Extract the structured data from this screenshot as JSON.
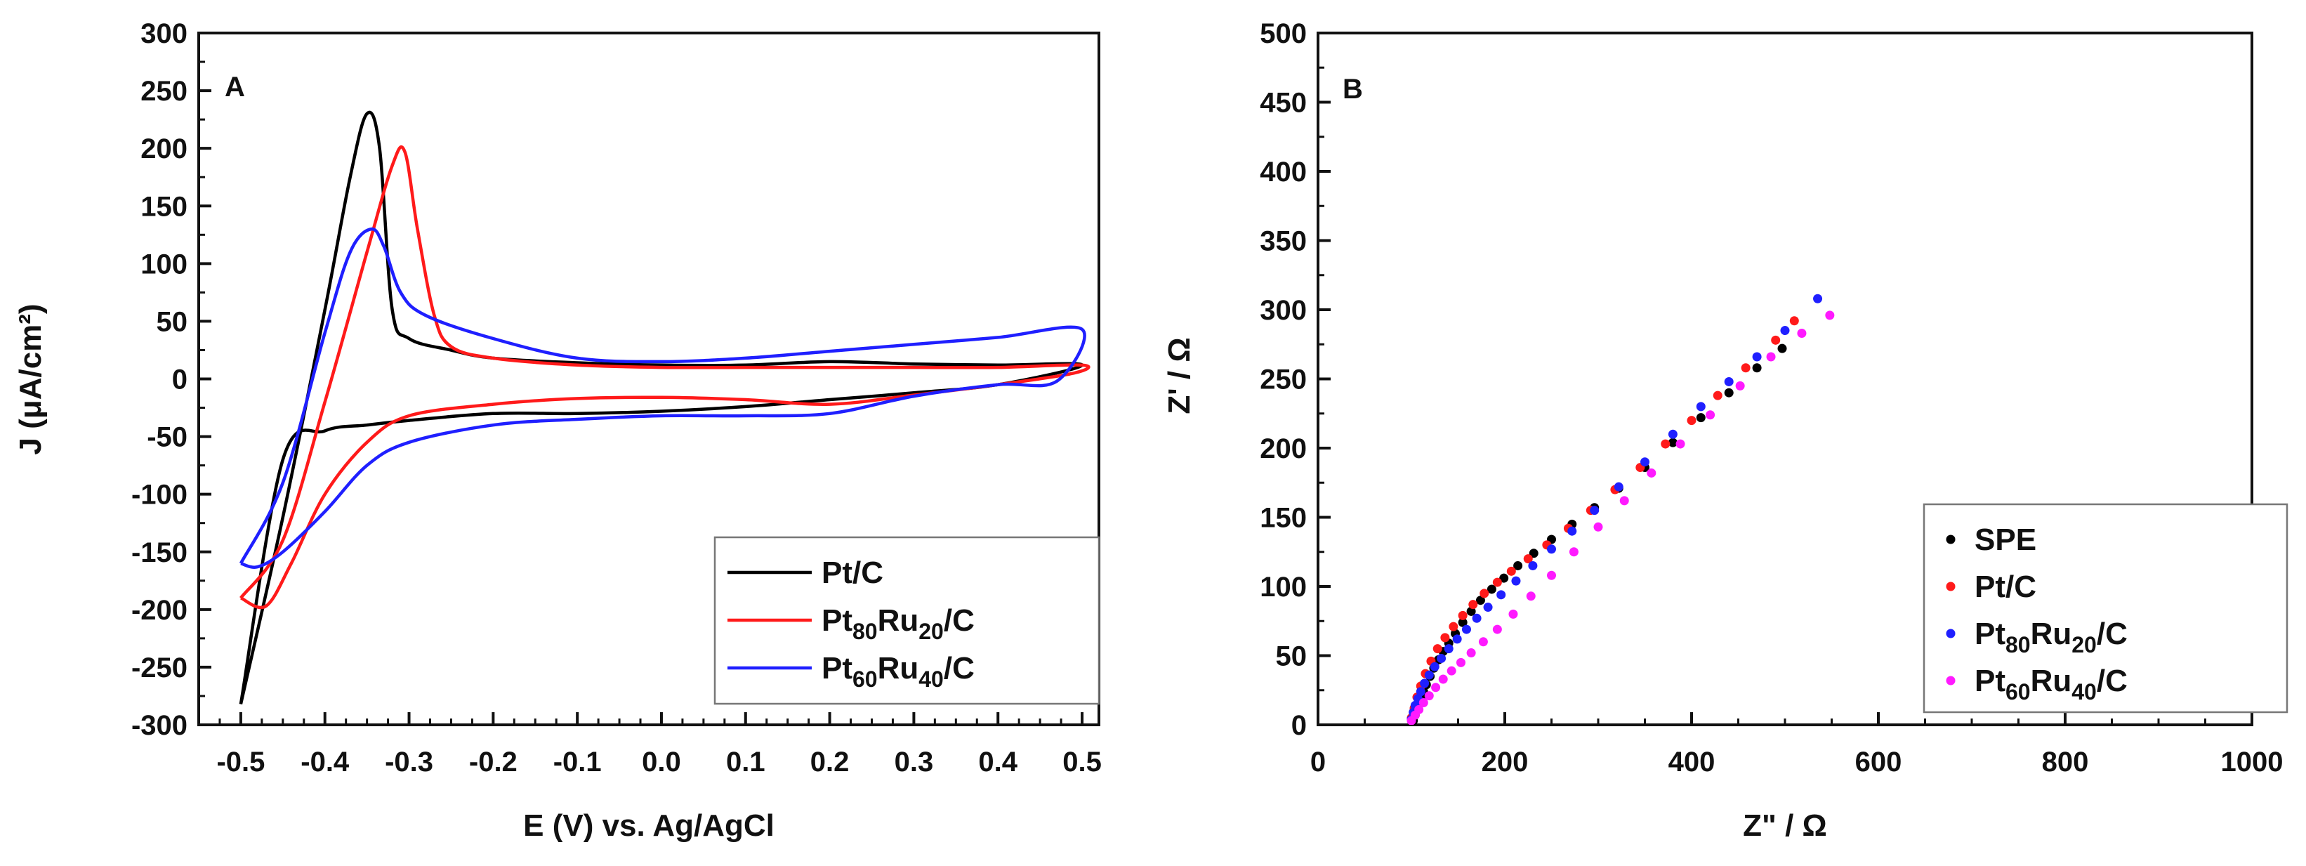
{
  "chart_data": [
    {
      "type": "line",
      "panel_label": "A",
      "xlabel": "E (V) vs. Ag/AgCl",
      "ylabel": "J (μA/cm²)",
      "xlim": [
        -0.55,
        0.52
      ],
      "ylim": [
        -300,
        300
      ],
      "xticks": [
        -0.5,
        -0.4,
        -0.3,
        -0.2,
        -0.1,
        0.0,
        0.1,
        0.2,
        0.3,
        0.4,
        0.5
      ],
      "xtick_labels": [
        "-0.5",
        "-0.4",
        "-0.3",
        "-0.2",
        "-0.1",
        "0.0",
        "0.1",
        "0.2",
        "0.3",
        "0.4",
        "0.5"
      ],
      "yticks": [
        -300,
        -250,
        -200,
        -150,
        -100,
        -50,
        0,
        50,
        100,
        150,
        200,
        250,
        300
      ],
      "ytick_labels": [
        "-300",
        "-250",
        "-200",
        "-150",
        "-100",
        "-50",
        "0",
        "50",
        "100",
        "150",
        "200",
        "250",
        "300"
      ],
      "legend_position": "bottom-right",
      "series": [
        {
          "name": "Pt/C",
          "legend": {
            "main": "Pt/C",
            "sub": []
          },
          "color": "#000000",
          "x": [
            -0.5,
            -0.45,
            -0.4,
            -0.37,
            -0.35,
            -0.335,
            -0.32,
            -0.3,
            -0.25,
            -0.2,
            -0.1,
            0.0,
            0.1,
            0.2,
            0.3,
            0.4,
            0.5,
            0.4,
            0.3,
            0.2,
            0.1,
            0.0,
            -0.1,
            -0.2,
            -0.3,
            -0.35,
            -0.4,
            -0.45,
            -0.5
          ],
          "y": [
            -282,
            -120,
            60,
            175,
            230,
            200,
            60,
            35,
            25,
            18,
            14,
            12,
            12,
            15,
            13,
            12,
            12,
            -5,
            -12,
            -18,
            -24,
            -28,
            -30,
            -30,
            -36,
            -40,
            -45,
            -70,
            -282
          ]
        },
        {
          "name": "Pt80Ru20/C",
          "legend": {
            "main": "Pt",
            "sub": [
              "80",
              "Ru",
              "20",
              "/C"
            ]
          },
          "color": "#ff1a1a",
          "x": [
            -0.5,
            -0.45,
            -0.4,
            -0.35,
            -0.32,
            -0.305,
            -0.29,
            -0.27,
            -0.25,
            -0.2,
            -0.1,
            0.0,
            0.1,
            0.2,
            0.3,
            0.4,
            0.5,
            0.49,
            0.4,
            0.3,
            0.2,
            0.1,
            0.0,
            -0.1,
            -0.2,
            -0.3,
            -0.35,
            -0.4,
            -0.44,
            -0.47,
            -0.5
          ],
          "y": [
            -190,
            -140,
            -20,
            110,
            185,
            197,
            130,
            55,
            28,
            18,
            12,
            10,
            10,
            10,
            10,
            10,
            12,
            5,
            -5,
            -14,
            -22,
            -18,
            -16,
            -17,
            -22,
            -32,
            -55,
            -100,
            -160,
            -197,
            -190
          ]
        },
        {
          "name": "Pt60Ru40/C",
          "legend": {
            "main": "Pt",
            "sub": [
              "60",
              "Ru",
              "40",
              "/C"
            ]
          },
          "color": "#1f1fff",
          "x": [
            -0.5,
            -0.45,
            -0.4,
            -0.37,
            -0.345,
            -0.33,
            -0.31,
            -0.28,
            -0.2,
            -0.1,
            0.0,
            0.1,
            0.2,
            0.3,
            0.4,
            0.5,
            0.47,
            0.4,
            0.3,
            0.2,
            0.1,
            0.0,
            -0.1,
            -0.2,
            -0.3,
            -0.35,
            -0.4,
            -0.45,
            -0.48,
            -0.5
          ],
          "y": [
            -160,
            -90,
            40,
            110,
            130,
            115,
            75,
            55,
            35,
            18,
            15,
            18,
            24,
            30,
            36,
            43,
            -2,
            -5,
            -15,
            -30,
            -32,
            -32,
            -35,
            -40,
            -55,
            -75,
            -115,
            -150,
            -163,
            -160
          ]
        }
      ]
    },
    {
      "type": "scatter",
      "panel_label": "B",
      "xlabel": "Z\" / Ω",
      "ylabel": "Z' / Ω",
      "xlim": [
        0,
        1000
      ],
      "ylim": [
        0,
        500
      ],
      "xticks": [
        0,
        200,
        400,
        600,
        800,
        1000
      ],
      "xtick_labels": [
        "0",
        "200",
        "400",
        "600",
        "800",
        "1000"
      ],
      "yticks": [
        0,
        50,
        100,
        150,
        200,
        250,
        300,
        350,
        400,
        450,
        500
      ],
      "ytick_labels": [
        "0",
        "50",
        "100",
        "150",
        "200",
        "250",
        "300",
        "350",
        "400",
        "450",
        "500"
      ],
      "legend_position": "bottom-right",
      "series": [
        {
          "name": "SPE",
          "legend": {
            "main": "SPE",
            "sub": []
          },
          "color": "#000000",
          "x": [
            102,
            104,
            106,
            108,
            110,
            113,
            116,
            120,
            124,
            129,
            134,
            140,
            147,
            155,
            164,
            174,
            186,
            199,
            214,
            231,
            250,
            272,
            296,
            322,
            350,
            380,
            410,
            440,
            470,
            497
          ],
          "y": [
            3,
            7,
            11,
            15,
            19,
            24,
            29,
            35,
            41,
            47,
            53,
            59,
            66,
            74,
            82,
            90,
            98,
            106,
            115,
            124,
            134,
            145,
            157,
            171,
            186,
            204,
            222,
            240,
            258,
            272
          ]
        },
        {
          "name": "Pt/C",
          "legend": {
            "main": "Pt/C",
            "sub": []
          },
          "color": "#ff1a1a",
          "x": [
            100,
            103,
            106,
            110,
            115,
            121,
            128,
            136,
            145,
            155,
            166,
            178,
            192,
            207,
            225,
            245,
            268,
            292,
            318,
            345,
            372,
            400,
            428,
            458,
            490,
            510
          ],
          "y": [
            5,
            12,
            20,
            28,
            37,
            46,
            55,
            63,
            71,
            79,
            87,
            95,
            103,
            111,
            120,
            130,
            142,
            155,
            170,
            186,
            203,
            220,
            238,
            258,
            278,
            292
          ]
        },
        {
          "name": "Pt80Ru20/C",
          "legend": {
            "main": "Pt",
            "sub": [
              "80",
              "Ru",
              "20",
              "/C"
            ]
          },
          "color": "#1f1fff",
          "x": [
            100,
            102,
            104,
            107,
            110,
            114,
            119,
            125,
            132,
            140,
            149,
            159,
            170,
            182,
            196,
            212,
            230,
            250,
            272,
            296,
            322,
            350,
            380,
            410,
            440,
            470,
            500,
            535
          ],
          "y": [
            4,
            9,
            14,
            19,
            24,
            30,
            36,
            42,
            48,
            55,
            62,
            69,
            77,
            85,
            94,
            104,
            115,
            127,
            140,
            155,
            172,
            190,
            210,
            230,
            248,
            266,
            285,
            308
          ]
        },
        {
          "name": "Pt60Ru40/C",
          "legend": {
            "main": "Pt",
            "sub": [
              "60",
              "Ru",
              "40",
              "/C"
            ]
          },
          "color": "#ff1aff",
          "x": [
            100,
            104,
            108,
            113,
            119,
            126,
            134,
            143,
            153,
            164,
            177,
            192,
            209,
            228,
            250,
            274,
            300,
            328,
            357,
            388,
            420,
            452,
            485,
            518,
            548
          ],
          "y": [
            3,
            7,
            11,
            16,
            21,
            27,
            33,
            39,
            45,
            52,
            60,
            69,
            80,
            93,
            108,
            125,
            143,
            162,
            182,
            203,
            224,
            245,
            266,
            283,
            296
          ]
        }
      ]
    }
  ]
}
